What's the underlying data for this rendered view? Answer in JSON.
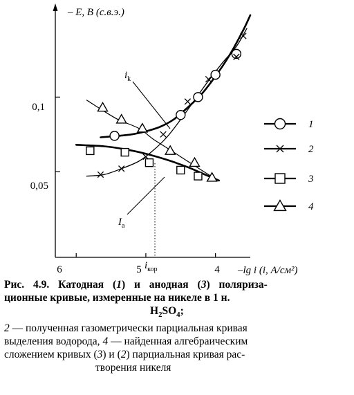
{
  "chart_data": {
    "type": "line",
    "xlabel": "–lg i (i, А/см²)",
    "ylabel": "– E, В (с.в.э.)",
    "x_ticks": [
      "6",
      "5",
      "4"
    ],
    "y_ticks": [
      "0,1",
      "0,05"
    ],
    "xlim": [
      6.3,
      3.5
    ],
    "ylim": [
      -0.0075,
      0.1605
    ],
    "x_reversed": true,
    "annotations": {
      "ik": "i",
      "ik_sub": "k",
      "Ia": "I",
      "Ia_sub": "a",
      "ikor": "i",
      "ikor_sub": "кор"
    },
    "ikor_x": 4.87,
    "series": [
      {
        "name": "1",
        "marker": "circle",
        "points": [
          [
            5.45,
            0.074
          ],
          [
            4.5,
            0.088
          ],
          [
            4.25,
            0.1
          ],
          [
            4.0,
            0.115
          ],
          [
            3.7,
            0.129
          ]
        ],
        "curve": [
          [
            5.65,
            0.073
          ],
          [
            5.4,
            0.074
          ],
          [
            5.2,
            0.075
          ],
          [
            5.0,
            0.077
          ],
          [
            4.8,
            0.08
          ],
          [
            4.6,
            0.085
          ],
          [
            4.4,
            0.093
          ],
          [
            4.2,
            0.102
          ],
          [
            4.0,
            0.114
          ],
          [
            3.8,
            0.128
          ],
          [
            3.6,
            0.145
          ],
          [
            3.5,
            0.155
          ]
        ]
      },
      {
        "name": "2",
        "marker": "cross",
        "points": [
          [
            5.65,
            0.048
          ],
          [
            5.35,
            0.052
          ],
          [
            5.0,
            0.06
          ],
          [
            4.75,
            0.075
          ],
          [
            4.4,
            0.097
          ],
          [
            4.1,
            0.112
          ],
          [
            3.7,
            0.127
          ],
          [
            3.6,
            0.141
          ]
        ],
        "curve": [
          [
            5.85,
            0.047
          ],
          [
            5.6,
            0.048
          ],
          [
            5.35,
            0.052
          ],
          [
            5.1,
            0.057
          ],
          [
            4.9,
            0.064
          ],
          [
            4.7,
            0.073
          ],
          [
            4.5,
            0.085
          ],
          [
            4.3,
            0.098
          ],
          [
            4.1,
            0.111
          ],
          [
            3.9,
            0.123
          ],
          [
            3.7,
            0.134
          ],
          [
            3.55,
            0.146
          ]
        ]
      },
      {
        "name": "3",
        "marker": "square",
        "points": [
          [
            5.8,
            0.064
          ],
          [
            5.3,
            0.063
          ],
          [
            4.95,
            0.056
          ],
          [
            4.5,
            0.051
          ],
          [
            4.25,
            0.047
          ]
        ],
        "curve": [
          [
            6.0,
            0.068
          ],
          [
            5.6,
            0.067
          ],
          [
            5.3,
            0.065
          ],
          [
            5.0,
            0.062
          ],
          [
            4.7,
            0.058
          ],
          [
            4.4,
            0.053
          ],
          [
            4.15,
            0.048
          ],
          [
            3.95,
            0.044
          ]
        ]
      },
      {
        "name": "4",
        "marker": "triangle",
        "points": [
          [
            5.62,
            0.093
          ],
          [
            5.35,
            0.085
          ],
          [
            5.05,
            0.079
          ],
          [
            4.65,
            0.064
          ],
          [
            4.3,
            0.056
          ],
          [
            4.05,
            0.046
          ]
        ],
        "curve": [
          [
            5.85,
            0.098
          ],
          [
            5.65,
            0.092
          ],
          [
            5.4,
            0.085
          ],
          [
            5.1,
            0.079
          ],
          [
            4.9,
            0.072
          ],
          [
            4.7,
            0.066
          ],
          [
            4.5,
            0.06
          ],
          [
            4.3,
            0.054
          ],
          [
            4.1,
            0.048
          ],
          [
            3.95,
            0.044
          ]
        ]
      }
    ],
    "legend_position": "right"
  },
  "caption": {
    "line1_prefix": "Рис.",
    "line1_figno": "4.9. Катодная (",
    "line1_n1": "1",
    "line1_mid": ") и анодная (",
    "line1_n3": "3",
    "line1_end": ") поляриза-",
    "line2": "ционные кривые, измеренные на никеле в 1 н.",
    "line3_a": "H",
    "line3_b": "2",
    "line3_c": "SO",
    "line3_d": "4",
    "line3_e": ";",
    "line4_n": "2",
    "line4": " — полученная газометрически парциальная кривая",
    "line5_a": "выделения водорода, ",
    "line5_n": "4",
    "line5_b": " — найденная алгебраическим",
    "line6_a": "сложением кривых (",
    "line6_n3": "3",
    "line6_b": ") и (",
    "line6_n2": "2",
    "line6_c": ") парциальная кривая рас-",
    "line7": "творения никеля"
  }
}
